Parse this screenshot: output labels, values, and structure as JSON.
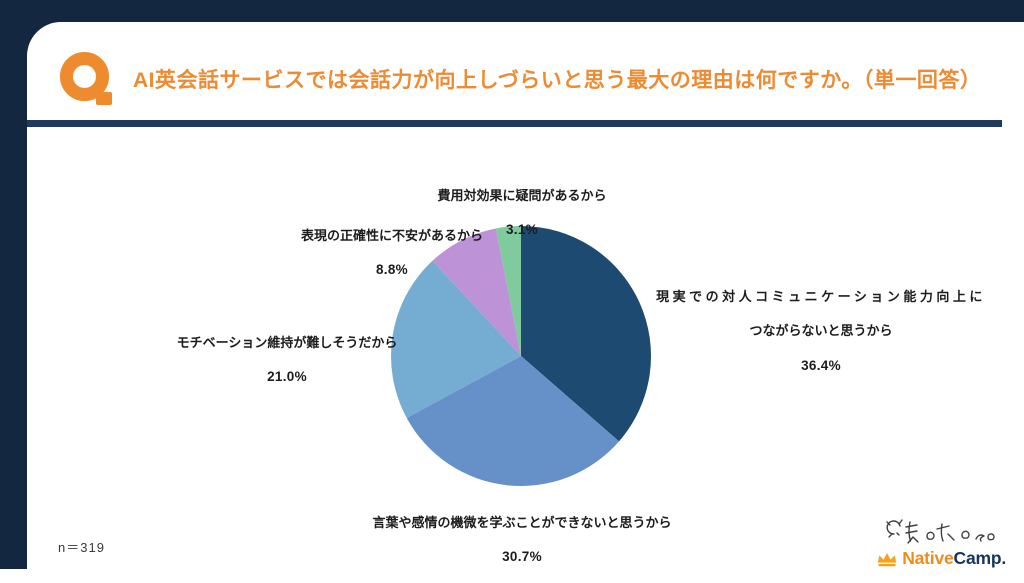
{
  "header": {
    "title": "AI英会話サービスでは会話力が向上しづらいと思う最大の理由は何ですか。（単一回答）"
  },
  "chart_data": {
    "type": "pie",
    "title": "AI英会話サービスでは会話力が向上しづらいと思う最大の理由は何ですか。（単一回答）",
    "start_angle_deg": 0,
    "direction": "clockwise",
    "sample_size_label": "n＝319",
    "slices": [
      {
        "label": "現実での対人コミュニケーション能力向上につながらないと思うから",
        "value": 36.4,
        "color": "#1d4a70"
      },
      {
        "label": "言葉や感情の機微を学ぶことができないと思うから",
        "value": 30.7,
        "color": "#6591c8"
      },
      {
        "label": "モチベーション維持が難しそうだから",
        "value": 21.0,
        "color": "#75add2"
      },
      {
        "label": "表現の正確性に不安があるから",
        "value": 8.8,
        "color": "#bd92d6"
      },
      {
        "label": "費用対効果に疑問があるから",
        "value": 3.1,
        "color": "#7fcb9d"
      }
    ]
  },
  "labels": [
    {
      "line1": "現実での対人コミュニケーション能力向上に",
      "line2": "つながらないと思うから",
      "percent": "36.4%"
    },
    {
      "line1": "言葉や感情の機微を学ぶことができないと思うから",
      "line2": "",
      "percent": "30.7%"
    },
    {
      "line1": "モチベーション維持が難しそうだから",
      "line2": "",
      "percent": "21.0%"
    },
    {
      "line1": "表現の正確性に不安があるから",
      "line2": "",
      "percent": "8.8%"
    },
    {
      "line1": "費用対効果に疑問があるから",
      "line2": "",
      "percent": "3.1%"
    }
  ],
  "footer": {
    "sample_size": "n＝319",
    "brand": {
      "native": "Native",
      "camp": "Camp."
    }
  },
  "colors": {
    "frame": "#132840",
    "divider": "#1f3a5e",
    "accent_orange": "#ed8b33",
    "logo_orange": "#f08c1e",
    "logo_navy": "#16355c"
  }
}
